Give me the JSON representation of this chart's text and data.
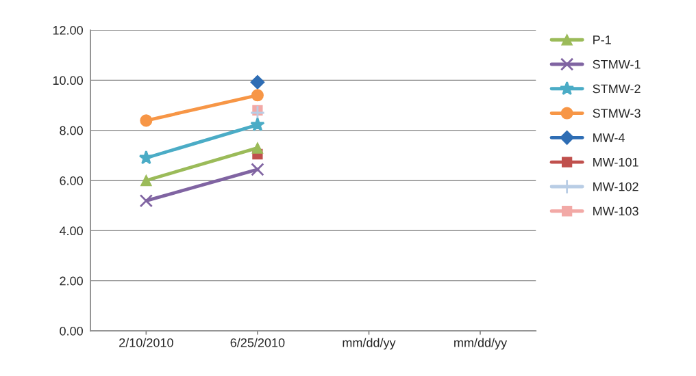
{
  "chart_data": {
    "type": "line",
    "categories": [
      "2/10/2010",
      "6/25/2010",
      "mm/dd/yy",
      "mm/dd/yy"
    ],
    "series": [
      {
        "name": "P-1",
        "color": "#9bbb59",
        "marker": "triangle",
        "values": [
          6.0,
          7.3,
          null,
          null
        ]
      },
      {
        "name": "STMW-1",
        "color": "#8064a2",
        "marker": "cross",
        "values": [
          5.19,
          6.44,
          null,
          null
        ]
      },
      {
        "name": "STMW-2",
        "color": "#4bacc6",
        "marker": "star",
        "values": [
          6.9,
          8.22,
          null,
          null
        ]
      },
      {
        "name": "STMW-3",
        "color": "#f79646",
        "marker": "circle",
        "values": [
          8.39,
          9.4,
          null,
          null
        ]
      },
      {
        "name": "MW-4",
        "color": "#2e6db4",
        "marker": "diamond",
        "values": [
          null,
          9.92,
          null,
          null
        ]
      },
      {
        "name": "MW-101",
        "color": "#c0504d",
        "marker": "square",
        "values": [
          null,
          7.05,
          null,
          null
        ]
      },
      {
        "name": "MW-102",
        "color": "#b9cde5",
        "marker": "plus",
        "values": [
          null,
          8.7,
          null,
          null
        ]
      },
      {
        "name": "MW-103",
        "color": "#f2a9a6",
        "marker": "square",
        "values": [
          null,
          8.8,
          null,
          null
        ]
      }
    ],
    "ylim": [
      0,
      12
    ],
    "yticks": [
      {
        "value": 0,
        "label": "0.00"
      },
      {
        "value": 2,
        "label": "2.00"
      },
      {
        "value": 4,
        "label": "4.00"
      },
      {
        "value": 6,
        "label": "6.00"
      },
      {
        "value": 8,
        "label": "8.00"
      },
      {
        "value": 10,
        "label": "10.00"
      },
      {
        "value": 12,
        "label": "12.00"
      }
    ],
    "grid": "y",
    "legend": "right",
    "line_style": "solid"
  }
}
